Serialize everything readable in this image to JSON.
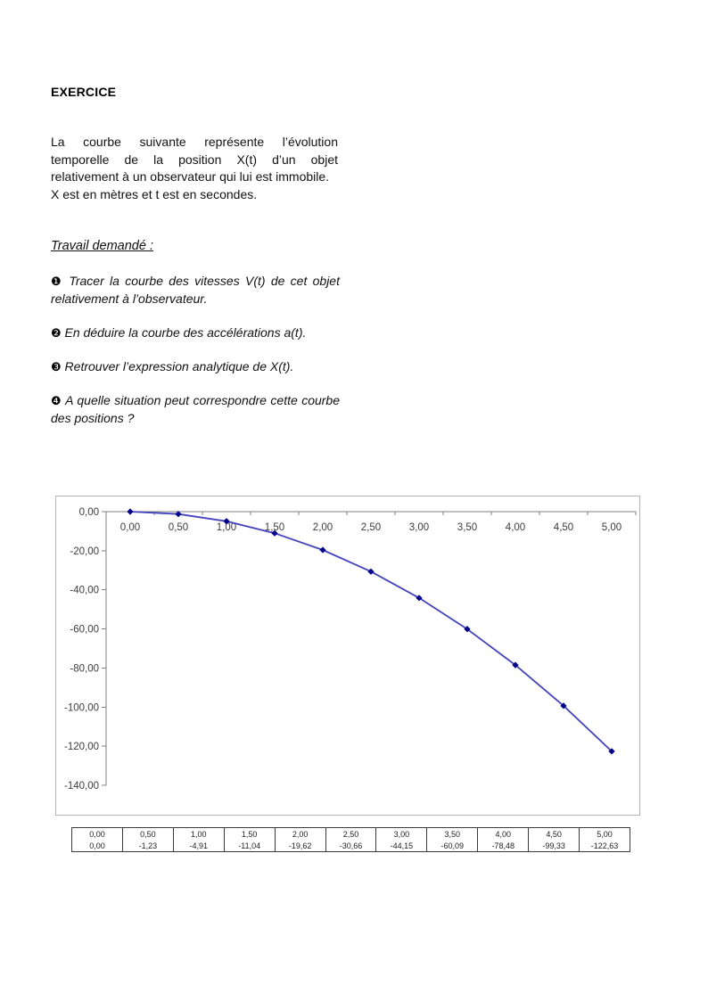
{
  "page": {
    "heading": "EXERCICE",
    "intro_lines": [
      "La courbe suivante représente l’évolution temporelle de la position X(t) d’un objet relativement à un observateur qui lui est immobile.",
      "X est en mètres et t est en secondes."
    ],
    "work_title": "Travail demandé :",
    "tasks": [
      {
        "bullet": "❶",
        "text": "Tracer la courbe des vitesses V(t) de cet objet relativement à l’observateur."
      },
      {
        "bullet": "❷",
        "text": "En déduire la courbe des accélérations a(t)."
      },
      {
        "bullet": "❸",
        "text": "Retrouver l’expression analytique de X(t)."
      },
      {
        "bullet": "❹",
        "text": "A quelle situation peut correspondre cette courbe des positions ?"
      }
    ]
  },
  "chart_data": {
    "type": "line",
    "title": "",
    "xlabel": "",
    "ylabel": "",
    "x": [
      0.0,
      0.5,
      1.0,
      1.5,
      2.0,
      2.5,
      3.0,
      3.5,
      4.0,
      4.5,
      5.0
    ],
    "series": [
      {
        "name": "X(t)",
        "values": [
          0.0,
          -1.23,
          -4.91,
          -11.04,
          -19.62,
          -30.66,
          -44.15,
          -60.09,
          -78.48,
          -99.33,
          -122.63
        ]
      }
    ],
    "x_tick_labels": [
      "0,00",
      "0,50",
      "1,00",
      "1,50",
      "2,00",
      "2,50",
      "3,00",
      "3,50",
      "4,00",
      "4,50",
      "5,00"
    ],
    "y_ticks": [
      0,
      -20,
      -40,
      -60,
      -80,
      -100,
      -120,
      -140
    ],
    "y_tick_labels": [
      "0,00",
      "-20,00",
      "-40,00",
      "-60,00",
      "-80,00",
      "-100,00",
      "-120,00",
      "-140,00"
    ],
    "ylim": [
      -140,
      0
    ],
    "grid": false,
    "legend": "none",
    "marker": "diamond",
    "line_color": "#4343bd",
    "marker_color": "#00008b",
    "axis_color": "#808080",
    "tick_label_color": "#3c3c3c"
  },
  "table": {
    "rows": [
      [
        "0,00",
        "0,50",
        "1,00",
        "1,50",
        "2,00",
        "2,50",
        "3,00",
        "3,50",
        "4,00",
        "4,50",
        "5,00"
      ],
      [
        "0,00",
        "-1,23",
        "-4,91",
        "-11,04",
        "-19,62",
        "-30,66",
        "-44,15",
        "-60,09",
        "-78,48",
        "-99,33",
        "-122,63"
      ]
    ]
  }
}
